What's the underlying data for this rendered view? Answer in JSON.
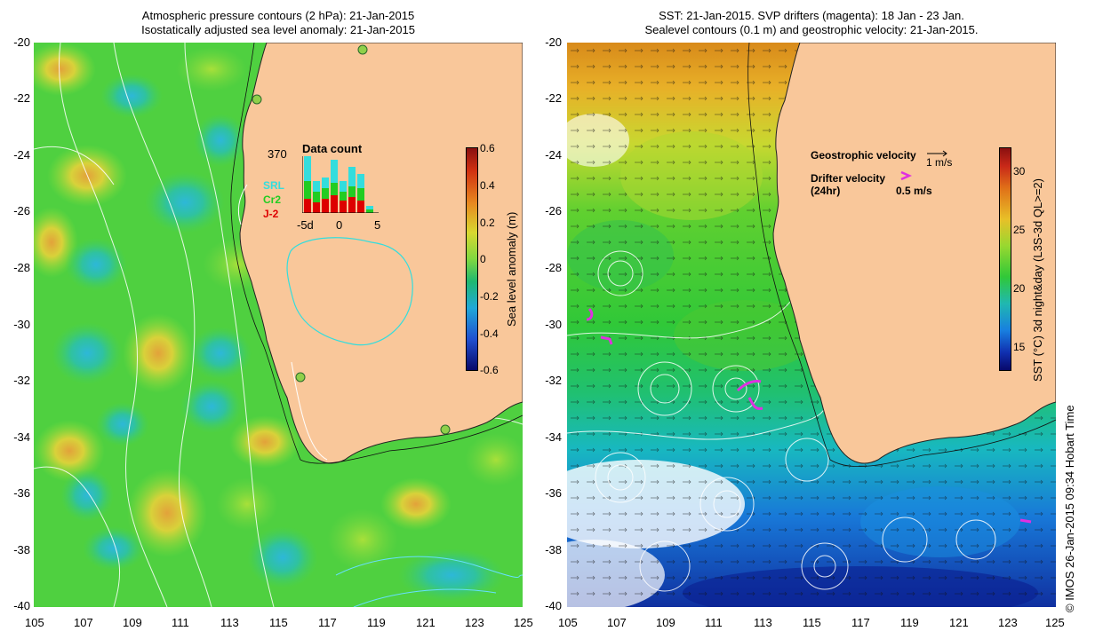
{
  "left_panel": {
    "title_line1": "Atmospheric pressure contours (2 hPa): 21-Jan-2015",
    "title_line2": "Isostatically adjusted sea level anomaly: 21-Jan-2015",
    "colorbar": {
      "label": "Sea level anomaly (m)",
      "ticks": [
        "0.6",
        "0.4",
        "0.2",
        "0",
        "-0.2",
        "-0.4",
        "-0.6"
      ],
      "range": [
        -0.6,
        0.6
      ]
    },
    "inset": {
      "count": "370",
      "title": "Data count",
      "legend": [
        {
          "label": "SRL",
          "color": "#33dddd"
        },
        {
          "label": "Cr2",
          "color": "#22cc22"
        },
        {
          "label": "J-2",
          "color": "#dd0000"
        }
      ],
      "xticks": [
        "-5d",
        "0",
        "5"
      ]
    }
  },
  "right_panel": {
    "title_line1": "SST: 21-Jan-2015. SVP drifters (magenta): 18 Jan - 23 Jan.",
    "title_line2": "Sealevel contours (0.1 m) and geostrophic velocity: 21-Jan-2015.",
    "colorbar": {
      "label": "SST (°C) 3d night&day (L3S-3d QL>=2)",
      "ticks": [
        "30",
        "25",
        "20",
        "15"
      ],
      "range": [
        13,
        32
      ]
    },
    "legend": {
      "geo_label": "Geostrophic velocity",
      "geo_scale": "1 m/s",
      "drifter_label": "Drifter velocity",
      "drifter_sub": "(24hr)",
      "drifter_scale": "0.5 m/s"
    }
  },
  "axes": {
    "x_ticks": [
      "105",
      "107",
      "109",
      "111",
      "113",
      "115",
      "117",
      "119",
      "121",
      "123",
      "125"
    ],
    "y_ticks": [
      "-20",
      "-22",
      "-24",
      "-26",
      "-28",
      "-30",
      "-32",
      "-34",
      "-36",
      "-38",
      "-40"
    ]
  },
  "credit": "© IMOS 26-Jan-2015 09:34 Hobart Time",
  "colors": {
    "land": "#f9c79a",
    "water_green": "#3fcf2e"
  }
}
